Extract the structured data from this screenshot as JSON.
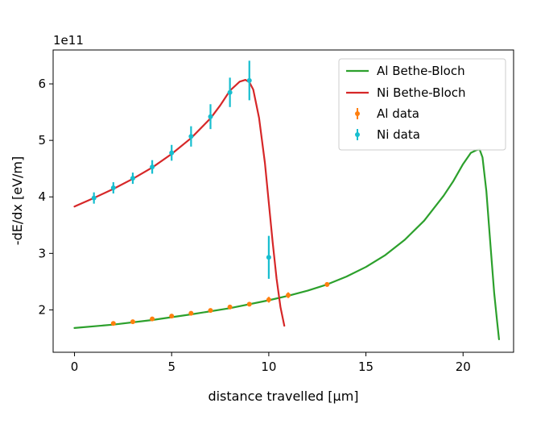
{
  "chart_data": {
    "type": "line",
    "xlabel": "distance travelled [μm]",
    "ylabel": "-dE/dx [eV/m]",
    "scale_note": "1e11",
    "xlim": [
      -1.1,
      22.6
    ],
    "ylim": [
      1.25,
      6.6
    ],
    "xticks": [
      0,
      5,
      10,
      15,
      20
    ],
    "yticks": [
      2,
      3,
      4,
      5,
      6
    ],
    "legend_position": "top-right",
    "grid": false,
    "series": [
      {
        "name": "Al Bethe-Bloch",
        "kind": "line",
        "color": "#2ca02c",
        "x": [
          0,
          2,
          4,
          6,
          8,
          10,
          11,
          12,
          13,
          14,
          15,
          16,
          17,
          18,
          19,
          19.5,
          20,
          20.4,
          20.7,
          20.85,
          21,
          21.2,
          21.4,
          21.6,
          21.75,
          21.85
        ],
        "y": [
          1.68,
          1.74,
          1.82,
          1.92,
          2.03,
          2.17,
          2.25,
          2.34,
          2.45,
          2.59,
          2.76,
          2.97,
          3.24,
          3.58,
          4.02,
          4.28,
          4.58,
          4.78,
          4.83,
          4.84,
          4.7,
          4.1,
          3.2,
          2.3,
          1.8,
          1.48
        ]
      },
      {
        "name": "Ni Bethe-Bloch",
        "kind": "line",
        "color": "#d62728",
        "x": [
          0,
          1,
          2,
          3,
          4,
          5,
          6,
          7,
          7.5,
          8,
          8.5,
          8.8,
          9.0,
          9.2,
          9.5,
          9.8,
          10.0,
          10.2,
          10.4,
          10.6,
          10.8
        ],
        "y": [
          3.83,
          3.98,
          4.14,
          4.32,
          4.52,
          4.76,
          5.04,
          5.39,
          5.62,
          5.88,
          6.04,
          6.07,
          6.03,
          5.9,
          5.4,
          4.6,
          3.9,
          3.2,
          2.55,
          2.05,
          1.72
        ]
      },
      {
        "name": "Al data",
        "kind": "errorbar",
        "color": "#ff7f0e",
        "x": [
          2,
          3,
          4,
          5,
          6,
          7,
          8,
          9,
          10,
          11,
          13
        ],
        "y": [
          1.76,
          1.79,
          1.84,
          1.89,
          1.94,
          1.99,
          2.05,
          2.1,
          2.18,
          2.26,
          2.45
        ],
        "yerr": [
          0.02,
          0.02,
          0.02,
          0.02,
          0.03,
          0.03,
          0.03,
          0.03,
          0.05,
          0.05,
          0.04
        ]
      },
      {
        "name": "Ni data",
        "kind": "errorbar",
        "color": "#17becf",
        "x": [
          1,
          2,
          3,
          4,
          5,
          6,
          7,
          8,
          9,
          10
        ],
        "y": [
          3.98,
          4.16,
          4.33,
          4.53,
          4.78,
          5.07,
          5.42,
          5.85,
          6.06,
          2.93
        ],
        "yerr": [
          0.1,
          0.1,
          0.1,
          0.12,
          0.14,
          0.18,
          0.22,
          0.26,
          0.35,
          0.38
        ]
      }
    ]
  }
}
